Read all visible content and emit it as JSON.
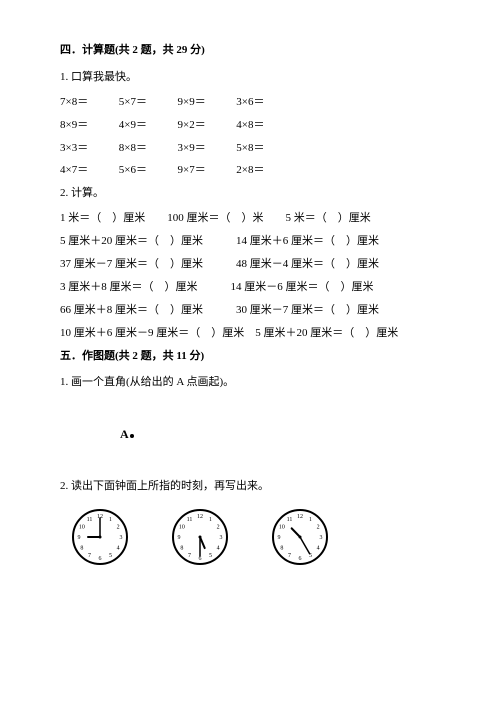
{
  "section4": {
    "title": "四．计算题(共 2 题，共 29 分)",
    "q1": {
      "title": "1. 口算我最快。",
      "rows": [
        [
          "7×8＝",
          "5×7＝",
          "9×9＝",
          "3×6＝"
        ],
        [
          "8×9＝",
          "4×9＝",
          "9×2＝",
          "4×8＝"
        ],
        [
          "3×3＝",
          "8×8＝",
          "3×9＝",
          "5×8＝"
        ],
        [
          "4×7＝",
          "5×6＝",
          "9×7＝",
          "2×8＝"
        ]
      ]
    },
    "q2": {
      "title": "2. 计算。",
      "lines": [
        "1 米＝（　）厘米　　100 厘米＝（　）米　　5 米＝（　）厘米",
        "5 厘米＋20 厘米＝（　）厘米　　　14 厘米＋6 厘米＝（　）厘米",
        "37 厘米－7 厘米＝（　）厘米　　　48 厘米－4 厘米＝（　）厘米",
        "3 厘米＋8 厘米＝（　）厘米　　　14 厘米－6 厘米＝（　）厘米",
        "66 厘米＋8 厘米＝（　）厘米　　　30 厘米－7 厘米＝（　）厘米",
        "10 厘米＋6 厘米－9 厘米＝（　）厘米　5 厘米＋20 厘米＝（　）厘米"
      ]
    }
  },
  "section5": {
    "title": "五．作图题(共 2 题，共 11 分)",
    "q1": {
      "title": "1. 画一个直角(从给出的 A 点画起)。",
      "point_label": "A"
    },
    "q2": {
      "title": "2. 读出下面钟面上所指的时刻，再写出来。",
      "clocks": [
        {
          "hour_angle": 270,
          "minute_angle": 0
        },
        {
          "hour_angle": 157,
          "minute_angle": 180
        },
        {
          "hour_angle": 316,
          "minute_angle": 150
        }
      ],
      "clock_styling": {
        "face_stroke": "#000000",
        "face_fill": "#ffffff",
        "tick_color": "#000000",
        "hand_color": "#000000",
        "number_font_size": 6
      }
    }
  }
}
